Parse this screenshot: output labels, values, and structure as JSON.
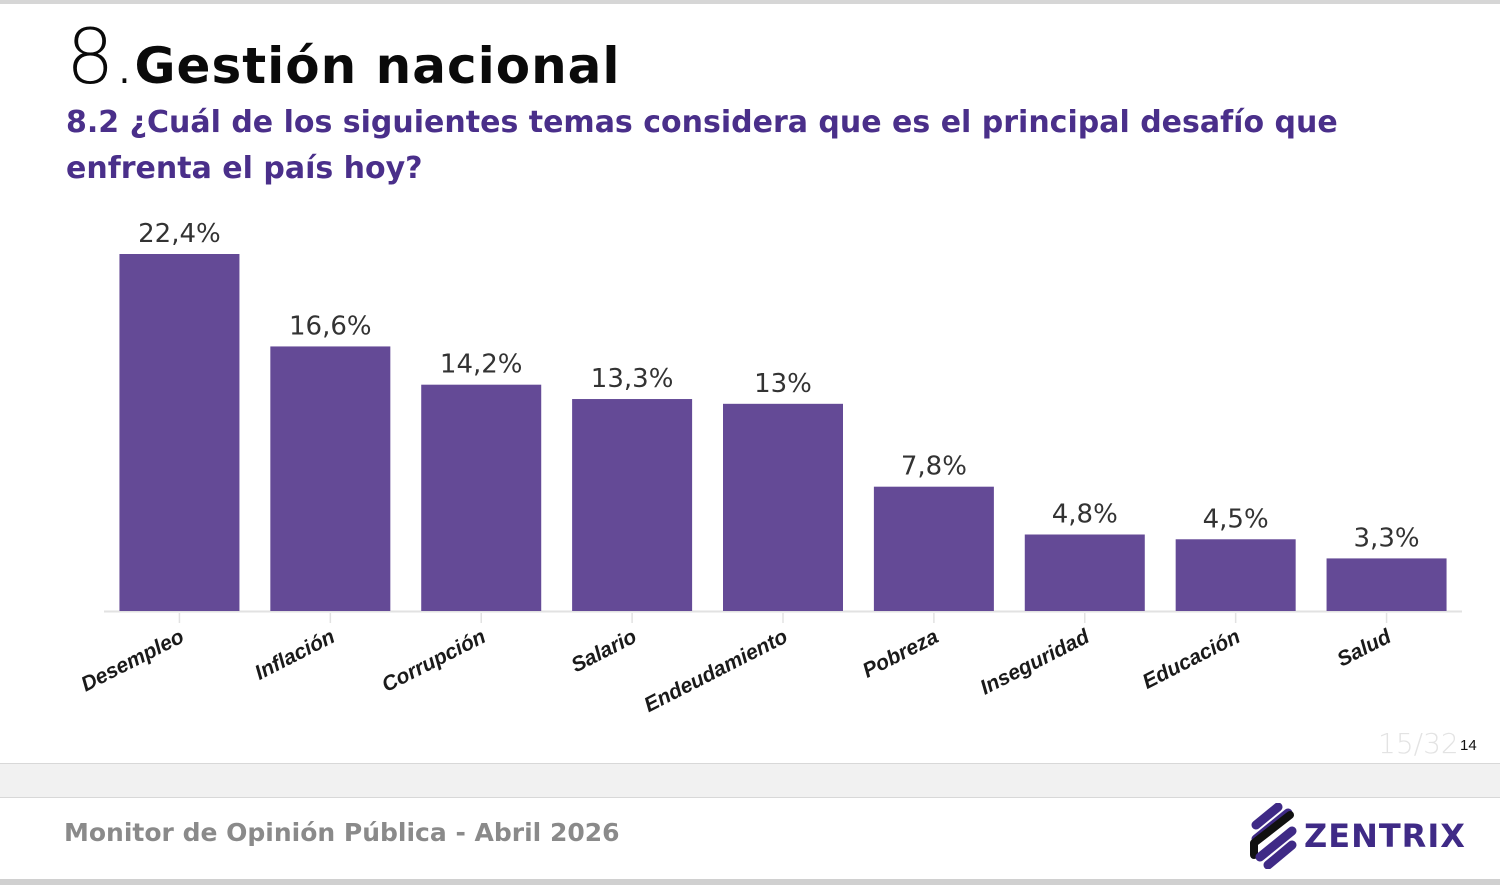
{
  "section": {
    "number": "8.",
    "title": "Gestión nacional"
  },
  "question": "8.2 ¿Cuál de los siguientes temas considera que es el principal desafío que enfrenta el país hoy?",
  "footer": {
    "text": "Monitor de Opinión Pública - Abril 2026"
  },
  "pagination": {
    "slide_counter": "15/32",
    "page_number": "14"
  },
  "brand": {
    "name": "ZENTRIX",
    "color": "#3f2a86",
    "logo_icon": "stacked-stripes-logo-icon"
  },
  "colors": {
    "bar": "#644a96",
    "title": "#0a0a0a",
    "question": "#4a2f8a",
    "label": "#333333"
  },
  "chart_data": {
    "type": "bar",
    "title": "",
    "xlabel": "",
    "ylabel": "",
    "ylim": [
      0,
      22.4
    ],
    "grid": false,
    "legend": "none",
    "categories": [
      "Desempleo",
      "Inflación",
      "Corrupción",
      "Salario",
      "Endeudamiento",
      "Pobreza",
      "Inseguridad",
      "Educación",
      "Salud"
    ],
    "values": [
      22.4,
      16.6,
      14.2,
      13.3,
      13.0,
      7.8,
      4.8,
      4.5,
      3.3
    ],
    "data_labels": [
      "22,4%",
      "16,6%",
      "14,2%",
      "13,3%",
      "13%",
      "7,8%",
      "4,8%",
      "4,5%",
      "3,3%"
    ]
  }
}
